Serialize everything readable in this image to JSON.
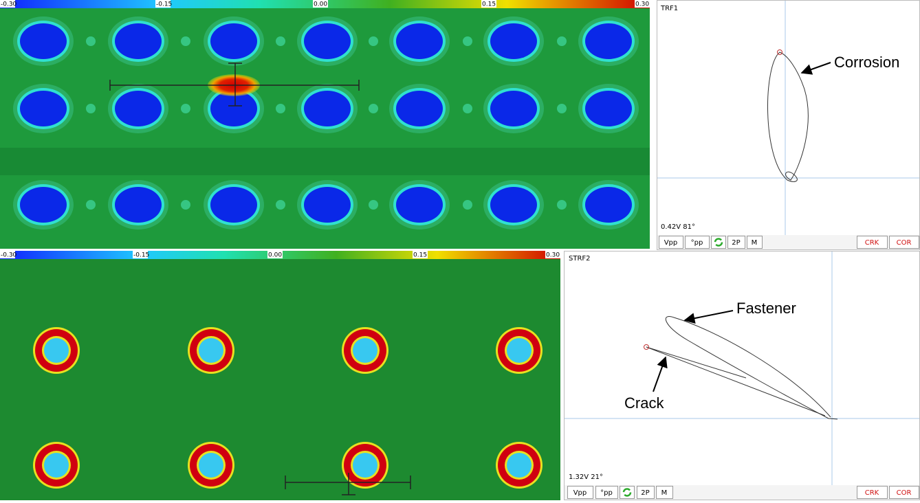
{
  "top_scan": {
    "colorbar_labels": [
      "-0.30",
      "-0.15",
      "0.00",
      "0.15",
      "0.30"
    ]
  },
  "top_plot": {
    "title": "TRF1",
    "annotation": "Corrosion",
    "readout": "0.42V 81°",
    "buttons": [
      "Vpp",
      "°pp",
      "2P",
      "M",
      "CRK",
      "COR"
    ]
  },
  "bottom_scan": {
    "colorbar_labels": [
      "-0.30",
      "-0.15",
      "0.00",
      "0.15",
      "0.30"
    ]
  },
  "bottom_plot": {
    "title": "STRF2",
    "annotations": [
      "Fastener",
      "Crack"
    ],
    "readout": "1.32V 21°",
    "buttons": [
      "Vpp",
      "°pp",
      "2P",
      "M",
      "CRK",
      "COR"
    ]
  }
}
